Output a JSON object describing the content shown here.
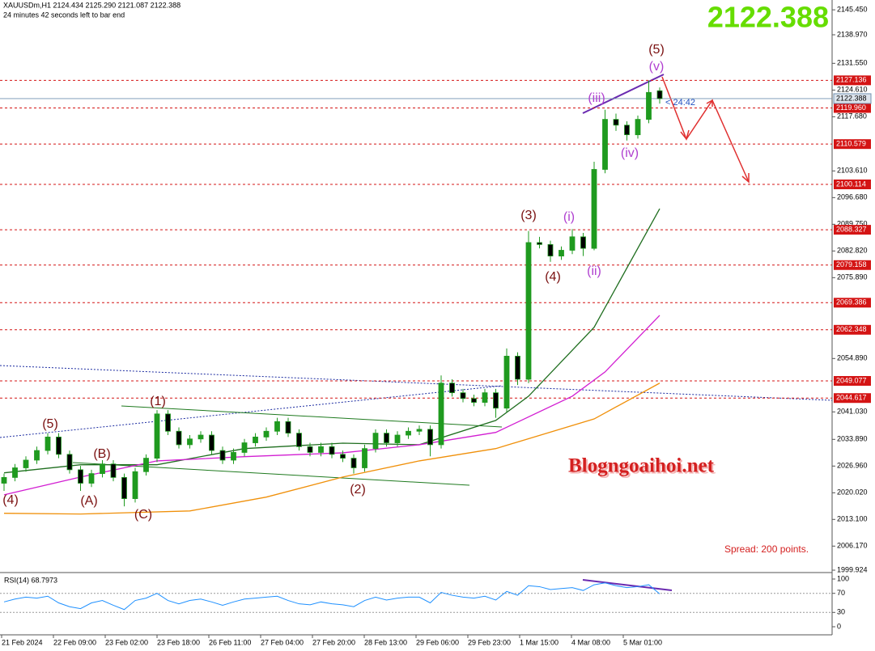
{
  "chart_data": {
    "type": "candlestick",
    "title": "XAUUSDm,H1  2124.434 2125.290 2121.087 2122.388",
    "subtitle": "24 minutes 42 seconds left to bar end",
    "last_price": 2122.388,
    "countdown": "< 24:42",
    "watermark": "Blogngoaihoi.net",
    "spread": "Spread: 200 points.",
    "up_color": "#1f9a1f",
    "down_color": "#000000",
    "time_labels": [
      "21 Feb 2024",
      "22 Feb 09:00",
      "23 Feb 02:00",
      "23 Feb 18:00",
      "26 Feb 11:00",
      "27 Feb 04:00",
      "27 Feb 20:00",
      "28 Feb 13:00",
      "29 Feb 06:00",
      "29 Feb 23:00",
      "1 Mar 15:00",
      "4 Mar 08:00",
      "5 Mar 01:00"
    ],
    "open": [
      2022.5,
      2024.0,
      2026.5,
      2028.5,
      2031.0,
      2034.5,
      2030.0,
      2026.0,
      2022.5,
      2025.0,
      2027.5,
      2024.0,
      2018.5,
      2025.5,
      2029.0,
      2040.5,
      2036.0,
      2032.5,
      2034.0,
      2035.0,
      2031.0,
      2028.5,
      2030.5,
      2033.0,
      2034.5,
      2036.0,
      2038.5,
      2035.5,
      2032.0,
      2030.5,
      2032.0,
      2030.0,
      2029.0,
      2026.5,
      2031.5,
      2035.5,
      2033.0,
      2035.0,
      2036.0,
      2036.5,
      2032.5,
      2048.5,
      2046.0,
      2044.5,
      2043.5,
      2046.0,
      2042.0,
      2055.5,
      2049.5,
      2085.0,
      2084.5,
      2081.5,
      2083.0,
      2086.5,
      2083.5,
      2104.0,
      2117.0,
      2115.5,
      2113.0,
      2117.0,
      2124.434
    ],
    "high": [
      2025.0,
      2027.5,
      2029.5,
      2032.0,
      2035.5,
      2035.5,
      2031.0,
      2027.0,
      2026.0,
      2028.5,
      2028.5,
      2025.0,
      2026.5,
      2030.0,
      2041.5,
      2041.5,
      2037.0,
      2035.0,
      2036.0,
      2036.0,
      2032.0,
      2031.5,
      2034.0,
      2035.5,
      2037.0,
      2039.5,
      2039.5,
      2036.5,
      2033.0,
      2033.0,
      2033.0,
      2031.0,
      2030.0,
      2032.5,
      2036.5,
      2036.5,
      2036.0,
      2037.0,
      2037.5,
      2037.5,
      2050.5,
      2049.5,
      2047.0,
      2045.5,
      2047.0,
      2047.0,
      2057.5,
      2056.5,
      2088.0,
      2086.5,
      2085.5,
      2084.0,
      2088.5,
      2087.5,
      2106.0,
      2119.5,
      2118.5,
      2116.5,
      2118.0,
      2127.1,
      2125.29
    ],
    "low": [
      2020.5,
      2023.0,
      2025.5,
      2027.5,
      2030.0,
      2029.0,
      2025.0,
      2020.5,
      2021.5,
      2024.0,
      2023.0,
      2016.5,
      2017.5,
      2024.5,
      2028.0,
      2035.0,
      2031.5,
      2031.5,
      2033.0,
      2030.0,
      2027.5,
      2027.5,
      2029.5,
      2032.0,
      2033.5,
      2035.0,
      2034.5,
      2031.0,
      2029.5,
      2029.5,
      2029.0,
      2028.0,
      2025.0,
      2025.5,
      2030.5,
      2032.0,
      2032.0,
      2034.0,
      2035.0,
      2029.5,
      2031.5,
      2045.0,
      2043.5,
      2042.5,
      2042.5,
      2039.5,
      2041.0,
      2048.0,
      2048.5,
      2083.5,
      2080.0,
      2080.5,
      2082.0,
      2081.5,
      2083.0,
      2103.0,
      2114.0,
      2111.5,
      2112.0,
      2116.0,
      2121.087
    ],
    "close": [
      2024.0,
      2026.5,
      2028.5,
      2031.0,
      2034.5,
      2030.0,
      2026.0,
      2022.5,
      2025.0,
      2027.5,
      2024.0,
      2018.5,
      2025.5,
      2029.0,
      2040.5,
      2036.0,
      2032.5,
      2034.0,
      2035.0,
      2031.0,
      2028.5,
      2030.5,
      2033.0,
      2034.5,
      2036.0,
      2038.5,
      2035.5,
      2032.0,
      2030.5,
      2032.0,
      2030.0,
      2029.0,
      2026.5,
      2031.5,
      2035.5,
      2033.0,
      2035.0,
      2036.0,
      2036.5,
      2032.5,
      2048.5,
      2046.0,
      2044.5,
      2043.5,
      2046.0,
      2042.0,
      2055.5,
      2049.5,
      2085.0,
      2084.5,
      2081.5,
      2083.0,
      2086.5,
      2083.5,
      2104.0,
      2117.0,
      2115.5,
      2113.0,
      2117.0,
      2124.0,
      2122.388
    ],
    "ylim": [
      1999.3,
      2148.0
    ],
    "yticks": [
      {
        "value": 2145.45,
        "label": "2145.450"
      },
      {
        "value": 2138.97,
        "label": "2138.970"
      },
      {
        "value": 2131.55,
        "label": "2131.550"
      },
      {
        "value": 2124.61,
        "label": "2124.610"
      },
      {
        "value": 2117.68,
        "label": "2117.680"
      },
      {
        "value": 2103.61,
        "label": "2103.610"
      },
      {
        "value": 2096.68,
        "label": "2096.680"
      },
      {
        "value": 2089.75,
        "label": "2089.750"
      },
      {
        "value": 2082.82,
        "label": "2082.820"
      },
      {
        "value": 2075.89,
        "label": "2075.890"
      },
      {
        "value": 2054.89,
        "label": "2054.890"
      },
      {
        "value": 2041.03,
        "label": "2041.030"
      },
      {
        "value": 2033.89,
        "label": "2033.890"
      },
      {
        "value": 2026.96,
        "label": "2026.960"
      },
      {
        "value": 2020.02,
        "label": "2020.020"
      },
      {
        "value": 2013.1,
        "label": "2013.100"
      },
      {
        "value": 2006.17,
        "label": "2006.170"
      },
      1999.924
    ],
    "level_color": "#d41414",
    "levels": [
      2127.136,
      {
        "value": 2119.96,
        "label": "2119.960"
      },
      2110.579,
      2100.114,
      2088.327,
      2079.158,
      2069.386,
      2062.348,
      2049.077,
      2044.617
    ],
    "moving_averages": [
      {
        "color": "#1f6e1f",
        "x": [
          0,
          7,
          14,
          22,
          31,
          38,
          45,
          48,
          54,
          60
        ],
        "values": [
          2025.2,
          2027.3,
          2027.3,
          2031.5,
          2032.9,
          2032.5,
          2038.8,
          2045.1,
          2063.0,
          2093.8
        ]
      },
      {
        "color": "#d21ed2",
        "x": [
          0,
          7,
          14,
          22,
          31,
          38,
          45,
          52,
          55,
          60
        ],
        "values": [
          2019.5,
          2024.1,
          2028.3,
          2029.4,
          2030.4,
          2032.5,
          2035.7,
          2045.1,
          2051.4,
          2066.1
        ]
      },
      {
        "color": "#f0900a",
        "x": [
          0,
          7,
          17,
          24,
          31,
          38,
          45,
          54,
          60
        ],
        "values": [
          2014.7,
          2014.5,
          2015.3,
          2018.9,
          2024.1,
          2028.3,
          2031.5,
          2039.2,
          2048.5
        ]
      }
    ],
    "waves": [
      {
        "label": "(5)",
        "color": "#7a1010"
      },
      {
        "label": "(v)",
        "color": "#b040d0"
      },
      {
        "label": "(iii)",
        "color": "#b040d0"
      },
      {
        "label": "(iv)",
        "color": "#b040d0"
      },
      {
        "label": "(3)",
        "color": "#7a1010"
      },
      {
        "label": "(i)",
        "color": "#b040d0"
      },
      {
        "label": "(4)",
        "color": "#7a1010"
      },
      {
        "label": "(ii)",
        "color": "#b040d0"
      },
      {
        "label": "(1)",
        "color": "#7a1010"
      },
      {
        "label": "(5)",
        "color": "#7a1010"
      },
      {
        "label": "(B)",
        "color": "#7a1010"
      },
      {
        "label": "(A)",
        "color": "#7a1010"
      },
      {
        "label": "(C)",
        "color": "#7a1010"
      },
      {
        "label": "(2)",
        "color": "#7a1010"
      },
      {
        "label": "(4)",
        "color": "#7a1010"
      }
    ],
    "rsi": {
      "title": "RSI(14) 68.7973",
      "color": "#1e90ff",
      "ylim": [
        0,
        100
      ],
      "yticks": [
        0,
        30,
        70,
        100
      ],
      "values": [
        52,
        58,
        62,
        60,
        64,
        50,
        42,
        38,
        50,
        55,
        45,
        36,
        55,
        60,
        70,
        55,
        48,
        55,
        58,
        52,
        45,
        52,
        58,
        60,
        62,
        64,
        55,
        48,
        46,
        52,
        48,
        46,
        42,
        55,
        62,
        56,
        60,
        62,
        62,
        50,
        72,
        66,
        62,
        60,
        64,
        56,
        74,
        66,
        86,
        84,
        78,
        80,
        82,
        76,
        88,
        92,
        86,
        82,
        84,
        88,
        68.7973
      ]
    }
  }
}
